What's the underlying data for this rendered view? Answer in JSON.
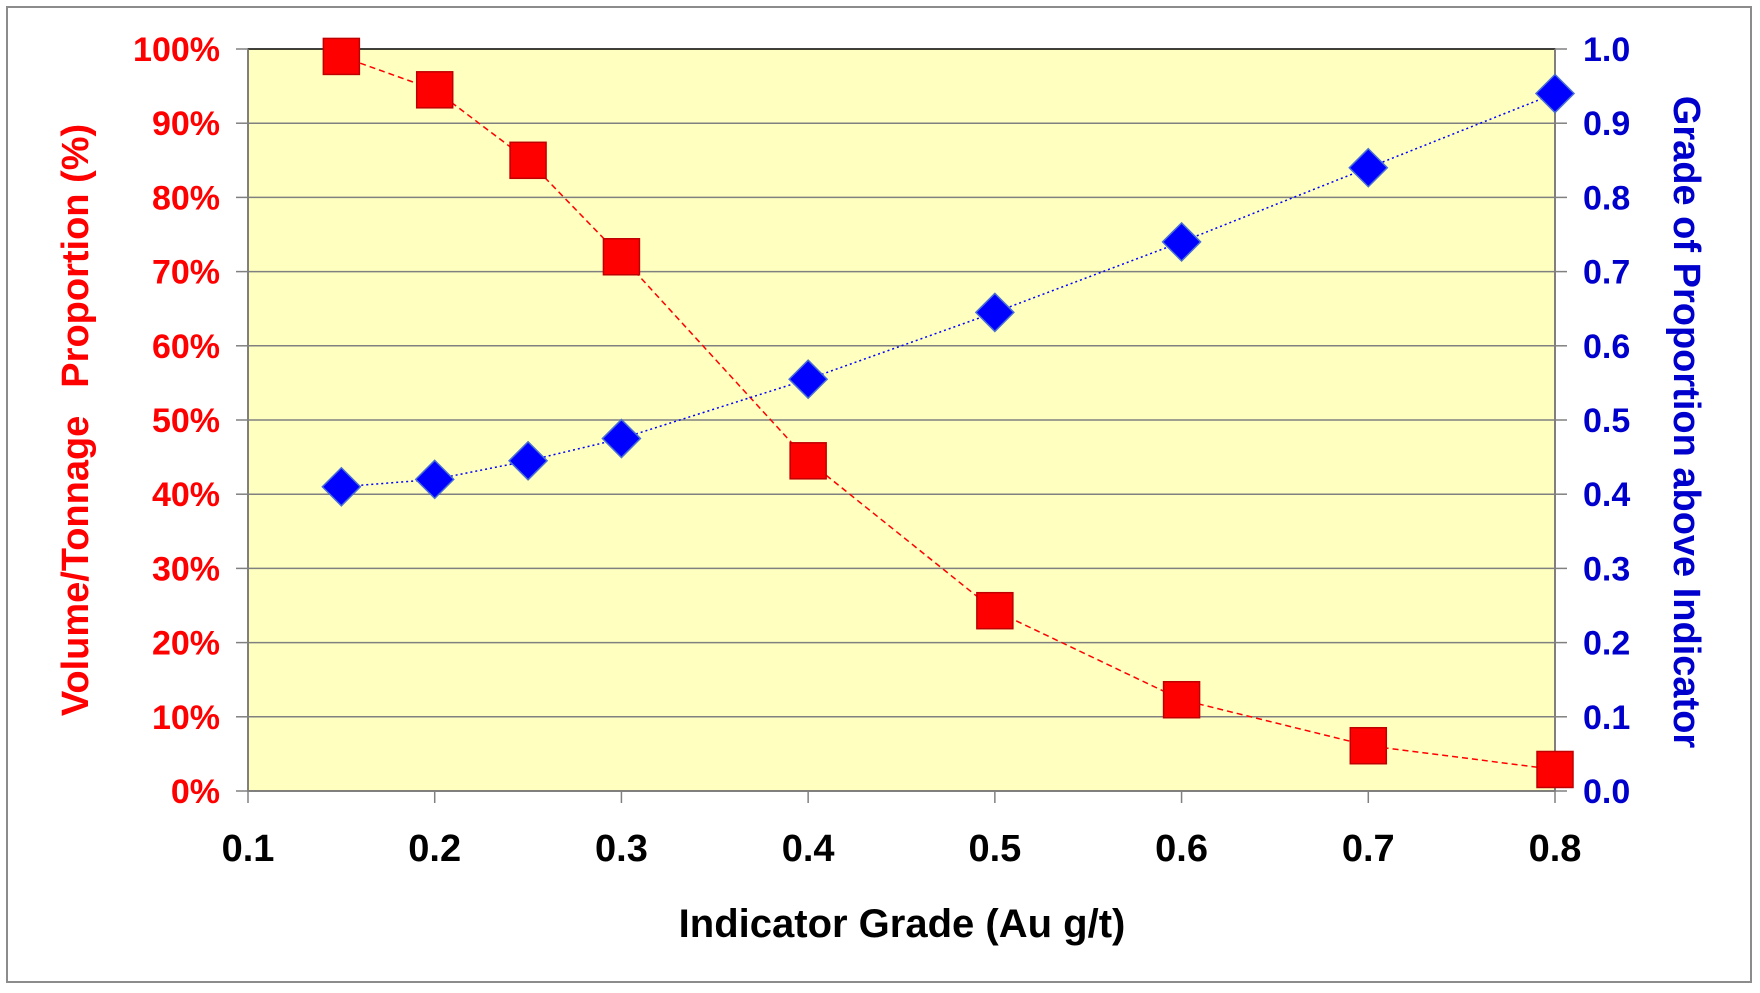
{
  "chart_data": {
    "type": "scatter",
    "title": "",
    "xlabel": "Indicator Grade (Au g/t)",
    "ylabel_left_parts": [
      "Volume/Tonnage",
      "Proportion (%)"
    ],
    "ylabel_right": "Grade of Proportion above Indicator",
    "xlim": [
      0.1,
      0.8
    ],
    "ylim_left": [
      0,
      100
    ],
    "ylim_right": [
      0.0,
      1.0
    ],
    "x_ticks": [
      "0.1",
      "0.2",
      "0.3",
      "0.4",
      "0.5",
      "0.6",
      "0.7",
      "0.8"
    ],
    "y_left_ticks": [
      "0%",
      "10%",
      "20%",
      "30%",
      "40%",
      "50%",
      "60%",
      "70%",
      "80%",
      "90%",
      "100%"
    ],
    "y_right_ticks": [
      "0.0",
      "0.1",
      "0.2",
      "0.3",
      "0.4",
      "0.5",
      "0.6",
      "0.7",
      "0.8",
      "0.9",
      "1.0"
    ],
    "grid": true,
    "plot_background": "#ffffc0",
    "series": [
      {
        "axis": "left",
        "marker": "square",
        "color": "#ff0000",
        "line_style": "dashed",
        "x": [
          0.15,
          0.2,
          0.25,
          0.3,
          0.4,
          0.5,
          0.6,
          0.7,
          0.8
        ],
        "y": [
          99,
          94.5,
          85,
          72,
          44.5,
          24.3,
          12.3,
          6.1,
          2.9
        ]
      },
      {
        "axis": "right",
        "marker": "diamond",
        "color": "#0000ff",
        "line_style": "dotted",
        "x": [
          0.15,
          0.2,
          0.25,
          0.3,
          0.4,
          0.5,
          0.6,
          0.7,
          0.8
        ],
        "y": [
          0.41,
          0.42,
          0.445,
          0.475,
          0.555,
          0.645,
          0.74,
          0.84,
          0.94
        ]
      }
    ]
  }
}
